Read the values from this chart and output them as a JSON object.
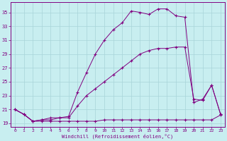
{
  "xlabel": "Windchill (Refroidissement éolien,°C)",
  "bg_color": "#c8eef0",
  "line_color": "#800080",
  "grid_color": "#a8d4d8",
  "xlim_min": -0.5,
  "xlim_max": 23.5,
  "ylim_min": 18.5,
  "ylim_max": 36.5,
  "yticks": [
    19,
    21,
    23,
    25,
    27,
    29,
    31,
    33,
    35
  ],
  "xticks": [
    0,
    1,
    2,
    3,
    4,
    5,
    6,
    7,
    8,
    9,
    10,
    11,
    12,
    13,
    14,
    15,
    16,
    17,
    18,
    19,
    20,
    21,
    22,
    23
  ],
  "line1_x": [
    0,
    1,
    2,
    3,
    4,
    5,
    6,
    7,
    8,
    9,
    10,
    11,
    12,
    13,
    14,
    15,
    16,
    17,
    18,
    19,
    20,
    21,
    22,
    23
  ],
  "line1_y": [
    21.0,
    20.3,
    19.3,
    19.3,
    19.3,
    19.3,
    19.3,
    19.3,
    19.3,
    19.3,
    19.5,
    19.5,
    19.5,
    19.5,
    19.5,
    19.5,
    19.5,
    19.5,
    19.5,
    19.5,
    19.5,
    19.5,
    19.5,
    20.2
  ],
  "line2_x": [
    0,
    1,
    2,
    3,
    4,
    5,
    6,
    7,
    8,
    9,
    10,
    11,
    12,
    13,
    14,
    15,
    16,
    17,
    18,
    19,
    20,
    21,
    22,
    23
  ],
  "line2_y": [
    21.0,
    20.3,
    19.3,
    19.5,
    19.5,
    19.8,
    19.8,
    21.5,
    23.0,
    24.0,
    25.0,
    26.0,
    27.0,
    28.0,
    29.0,
    29.5,
    29.8,
    29.8,
    30.0,
    30.0,
    22.5,
    22.3,
    24.5,
    20.3
  ],
  "line3_x": [
    0,
    1,
    2,
    3,
    4,
    5,
    6,
    7,
    8,
    9,
    10,
    11,
    12,
    13,
    14,
    15,
    16,
    17,
    18,
    19,
    20,
    21,
    22,
    23
  ],
  "line3_y": [
    21.0,
    20.3,
    19.3,
    19.5,
    19.8,
    19.8,
    20.0,
    23.5,
    26.3,
    29.0,
    31.0,
    32.5,
    33.5,
    35.2,
    35.0,
    34.7,
    35.5,
    35.5,
    34.5,
    34.3,
    22.0,
    22.5,
    24.5,
    20.3
  ]
}
